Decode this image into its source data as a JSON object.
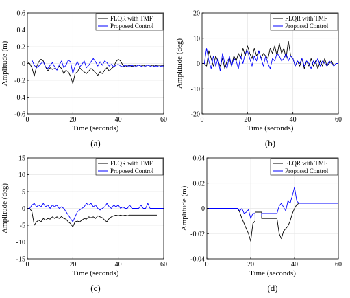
{
  "colors": {
    "series_a": "#000000",
    "series_b": "#0000ff",
    "axis": "#000000",
    "grid": "#e6e6e6"
  },
  "chart_data": [
    {
      "type": "line",
      "panel_label": "(a)",
      "xlabel": "Time (seconds)",
      "ylabel": "Amplitude (m)",
      "xlim": [
        0,
        60
      ],
      "ylim": [
        -0.6,
        0.6
      ],
      "xticks": [
        0,
        20,
        40,
        60
      ],
      "yticks": [
        -0.6,
        -0.4,
        -0.2,
        0,
        0.2,
        0.4,
        0.6
      ],
      "ytick_labels": [
        "-0.6",
        "-0.4",
        "-0.2",
        "0",
        "0.2",
        "0.4",
        "0.6"
      ],
      "grid": true,
      "legend": "top-right",
      "series": [
        {
          "name": "FLQR with TMF",
          "color": "#000000",
          "x": [
            0,
            1,
            2,
            3,
            4,
            5,
            6,
            7,
            8,
            9,
            10,
            11,
            12,
            13,
            14,
            15,
            16,
            17,
            18,
            19,
            20,
            21,
            22,
            23,
            24,
            25,
            26,
            27,
            28,
            29,
            30,
            31,
            32,
            33,
            34,
            35,
            36,
            37,
            38,
            39,
            40,
            41,
            42,
            43,
            44,
            45,
            46,
            47,
            48,
            49,
            50,
            51,
            52,
            53,
            54,
            55,
            56,
            57,
            58,
            59,
            60
          ],
          "y": [
            0.02,
            0.0,
            -0.05,
            -0.15,
            -0.04,
            0.02,
            0.05,
            0.03,
            -0.04,
            -0.09,
            -0.05,
            -0.07,
            -0.06,
            -0.07,
            -0.03,
            -0.06,
            -0.12,
            -0.08,
            -0.1,
            -0.15,
            -0.24,
            -0.12,
            -0.1,
            -0.05,
            -0.08,
            -0.1,
            -0.12,
            -0.09,
            -0.06,
            -0.08,
            -0.11,
            -0.14,
            -0.1,
            -0.12,
            -0.08,
            -0.05,
            -0.09,
            -0.06,
            -0.04,
            0.02,
            0.05,
            0.03,
            -0.02,
            -0.04,
            -0.03,
            -0.02,
            -0.04,
            -0.02,
            -0.03,
            -0.02,
            -0.03,
            -0.02,
            -0.03,
            -0.02,
            -0.03,
            -0.02,
            -0.03,
            -0.02,
            -0.02,
            -0.02,
            -0.02
          ]
        },
        {
          "name": "Proposed Control",
          "color": "#0000ff",
          "x": [
            0,
            2,
            3,
            4,
            5,
            6,
            7,
            8,
            9,
            10,
            11,
            12,
            13,
            14,
            15,
            16,
            17,
            18,
            19,
            20,
            21,
            22,
            23,
            24,
            25,
            26,
            27,
            28,
            29,
            30,
            31,
            32,
            33,
            34,
            35,
            36,
            37,
            38,
            39,
            40,
            41,
            42,
            43,
            44,
            45,
            46,
            47,
            48,
            49,
            50,
            51,
            52,
            53,
            54,
            55,
            56,
            57,
            58,
            59,
            60
          ],
          "y": [
            0.04,
            0.04,
            -0.02,
            -0.05,
            -0.03,
            0.0,
            0.02,
            -0.04,
            -0.06,
            -0.02,
            0.01,
            -0.04,
            -0.08,
            -0.02,
            0.03,
            -0.05,
            -0.02,
            0.04,
            0.02,
            -0.12,
            -0.03,
            0.02,
            -0.04,
            -0.01,
            0.03,
            -0.05,
            -0.02,
            0.02,
            0.06,
            0.02,
            -0.03,
            0.02,
            -0.02,
            0.03,
            0.01,
            -0.03,
            -0.01,
            -0.04,
            -0.02,
            -0.01,
            -0.03,
            -0.04,
            -0.02,
            -0.03,
            -0.03,
            -0.02,
            -0.04,
            -0.03,
            -0.02,
            -0.03,
            -0.04,
            -0.03,
            -0.02,
            -0.03,
            -0.04,
            -0.03,
            -0.03,
            -0.04,
            -0.03,
            -0.03
          ]
        }
      ]
    },
    {
      "type": "line",
      "panel_label": "(b)",
      "xlabel": "Time (seconds)",
      "ylabel": "Amplitude (deg)",
      "xlim": [
        0,
        60
      ],
      "ylim": [
        -20,
        20
      ],
      "xticks": [
        0,
        20,
        40,
        60
      ],
      "yticks": [
        -20,
        -10,
        0,
        10,
        20
      ],
      "ytick_labels": [
        "-20",
        "-10",
        "0",
        "10",
        "20"
      ],
      "grid": true,
      "legend": "top-right",
      "series": [
        {
          "name": "FLQR with TMF",
          "color": "#000000",
          "x": [
            0,
            1,
            2,
            3,
            4,
            5,
            6,
            7,
            8,
            9,
            10,
            11,
            12,
            13,
            14,
            15,
            16,
            17,
            18,
            19,
            20,
            21,
            22,
            23,
            24,
            25,
            26,
            27,
            28,
            29,
            30,
            31,
            32,
            33,
            34,
            35,
            36,
            37,
            38,
            39,
            40,
            41,
            42,
            43,
            44,
            45,
            46,
            47,
            48,
            49,
            50,
            51,
            52,
            53,
            54,
            55,
            56,
            57,
            58,
            59,
            60
          ],
          "y": [
            0,
            0,
            -1,
            5,
            2,
            -1,
            3,
            1,
            -1,
            2,
            -2,
            1,
            2,
            -1,
            3,
            1,
            4,
            2,
            6,
            3,
            7,
            4,
            2,
            6,
            3,
            5,
            2,
            4,
            3,
            2,
            6,
            4,
            7,
            3,
            8,
            4,
            6,
            2,
            9,
            3,
            2,
            -1,
            1,
            -1,
            2,
            -2,
            1,
            -1,
            2,
            -1,
            1,
            -2,
            1,
            -1,
            2,
            -1,
            0,
            1,
            -1,
            0,
            0
          ]
        },
        {
          "name": "Proposed Control",
          "color": "#0000ff",
          "x": [
            0,
            1,
            2,
            3,
            4,
            5,
            6,
            7,
            8,
            9,
            10,
            11,
            12,
            13,
            14,
            15,
            16,
            17,
            18,
            19,
            20,
            21,
            22,
            23,
            24,
            25,
            26,
            27,
            28,
            29,
            30,
            31,
            32,
            33,
            34,
            35,
            36,
            37,
            38,
            39,
            40,
            41,
            42,
            43,
            44,
            45,
            46,
            47,
            48,
            49,
            50,
            51,
            52,
            53,
            54,
            55,
            56,
            57,
            58,
            59,
            60
          ],
          "y": [
            0,
            0,
            6,
            1,
            -2,
            3,
            -1,
            2,
            -3,
            4,
            0,
            -2,
            3,
            -1,
            2,
            1,
            -2,
            3,
            0,
            4,
            5,
            2,
            -1,
            3,
            1,
            5,
            2,
            -1,
            3,
            0,
            -2,
            2,
            1,
            4,
            3,
            1,
            2,
            4,
            1,
            3,
            2,
            -1,
            1,
            0,
            2,
            -1,
            1,
            0,
            -2,
            1,
            0,
            2,
            -1,
            1,
            0,
            -1,
            1,
            0,
            -1,
            0,
            0
          ]
        }
      ]
    },
    {
      "type": "line",
      "panel_label": "(c)",
      "xlabel": "Time (seconds)",
      "ylabel": "Amplitude (deg)",
      "xlim": [
        0,
        60
      ],
      "ylim": [
        -15,
        15
      ],
      "xticks": [
        0,
        20,
        40,
        60
      ],
      "yticks": [
        -15,
        -10,
        -5,
        0,
        5,
        10,
        15
      ],
      "ytick_labels": [
        "-15",
        "-10",
        "-5",
        "0",
        "5",
        "10",
        "15"
      ],
      "grid": true,
      "legend": "top-right",
      "series": [
        {
          "name": "FLQR with TMF",
          "color": "#000000",
          "x": [
            0,
            1,
            2,
            3,
            4,
            5,
            6,
            7,
            8,
            9,
            10,
            11,
            12,
            13,
            14,
            15,
            16,
            17,
            18,
            19,
            20,
            21,
            22,
            23,
            24,
            25,
            26,
            27,
            28,
            29,
            30,
            31,
            32,
            33,
            34,
            35,
            36,
            37,
            38,
            39,
            40,
            41,
            42,
            43,
            44,
            45,
            46,
            47,
            48,
            49,
            50,
            51,
            52,
            53,
            54,
            55,
            56,
            57
          ],
          "y": [
            0,
            0,
            -1,
            -5,
            -4,
            -3.5,
            -4,
            -3,
            -3.5,
            -3,
            -3.2,
            -2.5,
            -3,
            -2.5,
            -3,
            -2.4,
            -3,
            -3.2,
            -4,
            -4.5,
            -5.5,
            -4,
            -3.8,
            -4,
            -3.5,
            -3,
            -3.2,
            -2.5,
            -2.8,
            -2.5,
            -3,
            -2.2,
            -2.5,
            -2.8,
            -3.5,
            -4,
            -3,
            -2.5,
            -2.2,
            -2,
            -2.2,
            -2,
            -2.2,
            -2,
            -2.2,
            -2,
            -2,
            -2,
            -2,
            -2,
            -2,
            -2,
            -2,
            -2,
            -2,
            -2,
            -2,
            -2
          ]
        },
        {
          "name": "Proposed Control",
          "color": "#0000ff",
          "x": [
            0,
            1,
            2,
            3,
            4,
            5,
            6,
            7,
            8,
            9,
            10,
            11,
            12,
            13,
            14,
            15,
            16,
            17,
            18,
            19,
            20,
            21,
            22,
            23,
            24,
            25,
            26,
            27,
            28,
            29,
            30,
            31,
            32,
            33,
            34,
            35,
            36,
            37,
            38,
            39,
            40,
            41,
            42,
            43,
            44,
            45,
            46,
            47,
            48,
            49,
            50,
            51,
            52,
            53,
            54,
            55,
            56,
            57,
            58,
            59,
            60
          ],
          "y": [
            0,
            0,
            1,
            1.5,
            0.5,
            1,
            0.5,
            1.5,
            0.5,
            1,
            0,
            1,
            0.5,
            1,
            0,
            0.5,
            0,
            -1,
            -2,
            -3,
            -4,
            -2.5,
            -1,
            -0.5,
            0,
            0.5,
            1.5,
            1,
            1.5,
            0.5,
            1,
            0,
            -0.5,
            0,
            0.5,
            1.5,
            0.5,
            0,
            1,
            0.5,
            1,
            0,
            0.5,
            0,
            0,
            1,
            0,
            0,
            0,
            0,
            1,
            0,
            0,
            1.5,
            0,
            0,
            0,
            0,
            0,
            0,
            0
          ]
        }
      ]
    },
    {
      "type": "line",
      "panel_label": "(d)",
      "xlabel": "Time (seconds)",
      "ylabel": "Amplitude (m)",
      "xlim": [
        0,
        60
      ],
      "ylim": [
        -0.04,
        0.04
      ],
      "xticks": [
        0,
        20,
        40,
        60
      ],
      "yticks": [
        -0.04,
        -0.02,
        0,
        0.02,
        0.04
      ],
      "ytick_labels": [
        "-0.04",
        "-0.02",
        "0",
        "0.02",
        "0.04"
      ],
      "grid": true,
      "legend": "top-right",
      "series": [
        {
          "name": "FLQR with TMF",
          "color": "#000000",
          "x": [
            0,
            14,
            15,
            16,
            17,
            18,
            19,
            20,
            21,
            22,
            22,
            23,
            24,
            25,
            25,
            26,
            27,
            28,
            29,
            30,
            31,
            32,
            33,
            34,
            35,
            36,
            37,
            38,
            39,
            40,
            41,
            42,
            43,
            44,
            60
          ],
          "y": [
            0,
            0,
            -0.003,
            -0.008,
            -0.012,
            -0.016,
            -0.02,
            -0.026,
            -0.012,
            -0.01,
            -0.003,
            -0.003,
            -0.003,
            -0.003,
            -0.008,
            -0.008,
            -0.008,
            -0.008,
            -0.008,
            -0.008,
            -0.008,
            -0.008,
            -0.02,
            -0.024,
            -0.018,
            -0.016,
            -0.014,
            -0.01,
            -0.004,
            0.0,
            0.003,
            0.004,
            0.004,
            0.004,
            0.004
          ]
        },
        {
          "name": "Proposed Control",
          "color": "#0000ff",
          "x": [
            0,
            14,
            15,
            16,
            17,
            18,
            19,
            20,
            21,
            22,
            22,
            23,
            24,
            25,
            25,
            26,
            27,
            28,
            29,
            30,
            31,
            32,
            33,
            34,
            35,
            36,
            37,
            38,
            39,
            40,
            41,
            42,
            43,
            44,
            60
          ],
          "y": [
            0,
            0,
            -0.002,
            0.0,
            -0.004,
            -0.003,
            -0.001,
            -0.008,
            -0.004,
            -0.004,
            -0.006,
            -0.006,
            -0.006,
            -0.006,
            -0.004,
            -0.004,
            -0.004,
            -0.004,
            -0.004,
            -0.004,
            -0.004,
            -0.004,
            0.002,
            0.004,
            0.001,
            -0.002,
            0.006,
            0.004,
            0.01,
            0.017,
            0.006,
            0.004,
            0.004,
            0.004,
            0.004
          ]
        }
      ]
    }
  ]
}
